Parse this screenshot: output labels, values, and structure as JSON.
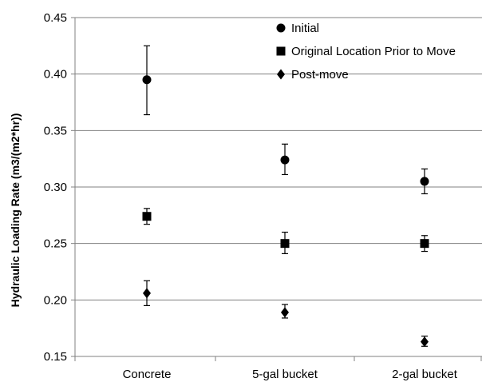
{
  "chart_data": {
    "type": "scatter",
    "title": "",
    "xlabel": "",
    "ylabel": "Hydraulic Loading Rate (m3/(m2*hr))",
    "categories": [
      "Concrete",
      "5-gal bucket",
      "2-gal bucket"
    ],
    "ylim": [
      0.15,
      0.45
    ],
    "yticks": [
      "0.15",
      "0.20",
      "0.25",
      "0.30",
      "0.35",
      "0.40",
      "0.45"
    ],
    "grid": "horizontal",
    "legend_position": "top-right",
    "series": [
      {
        "name": "Initial",
        "marker": "circle",
        "values": [
          0.395,
          0.324,
          0.305
        ],
        "error_low": [
          0.364,
          0.311,
          0.294
        ],
        "error_high": [
          0.425,
          0.338,
          0.316
        ]
      },
      {
        "name": "Original Location Prior to Move",
        "marker": "square",
        "values": [
          0.274,
          0.25,
          0.25
        ],
        "error_low": [
          0.267,
          0.241,
          0.243
        ],
        "error_high": [
          0.281,
          0.26,
          0.257
        ]
      },
      {
        "name": "Post-move",
        "marker": "diamond",
        "values": [
          0.206,
          0.189,
          0.163
        ],
        "error_low": [
          0.195,
          0.184,
          0.159
        ],
        "error_high": [
          0.217,
          0.196,
          0.168
        ]
      }
    ]
  }
}
